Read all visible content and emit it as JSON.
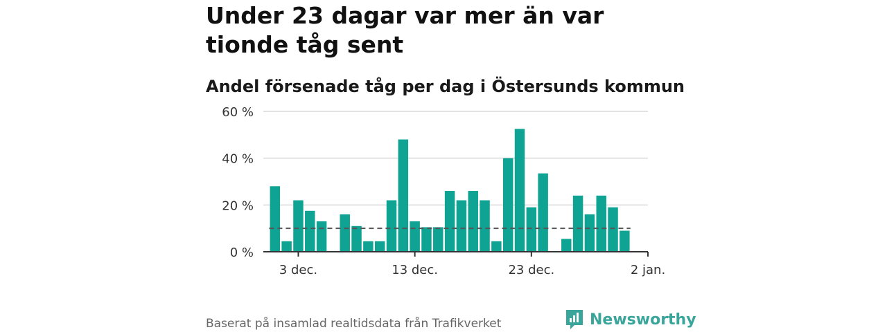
{
  "header": {
    "title": "Under 23 dagar var mer än var tionde tåg sent",
    "subtitle": "Andel försenade tåg per dag i Östersunds kommun"
  },
  "footer": {
    "source": "Baserat på insamlad realtidsdata från Trafikverket",
    "brand": "Newsworthy"
  },
  "colors": {
    "bar": "#0fa393",
    "threshold_line": "#555555",
    "grid": "#d9d9d9",
    "brand": "#3aa59a"
  },
  "chart_data": {
    "type": "bar",
    "title": "Andel försenade tåg per dag i Östersunds kommun",
    "ylabel": "",
    "xlabel": "",
    "ylim": [
      0,
      60
    ],
    "yticks": [
      0,
      20,
      40,
      60
    ],
    "ytick_labels": [
      "0 %",
      "20 %",
      "40 %",
      "60 %"
    ],
    "xtick_labels": [
      "3 dec.",
      "13 dec.",
      "23 dec.",
      "2 jan."
    ],
    "xtick_dates": [
      "2019-12-03",
      "2019-12-13",
      "2019-12-23",
      "2020-01-02"
    ],
    "x_range": [
      "2019-11-30",
      "2020-01-02"
    ],
    "threshold": 10,
    "dates": [
      "2019-12-01",
      "2019-12-02",
      "2019-12-03",
      "2019-12-04",
      "2019-12-05",
      "2019-12-06",
      "2019-12-07",
      "2019-12-08",
      "2019-12-09",
      "2019-12-10",
      "2019-12-11",
      "2019-12-12",
      "2019-12-13",
      "2019-12-14",
      "2019-12-15",
      "2019-12-16",
      "2019-12-17",
      "2019-12-18",
      "2019-12-19",
      "2019-12-20",
      "2019-12-21",
      "2019-12-22",
      "2019-12-23",
      "2019-12-24",
      "2019-12-25",
      "2019-12-26",
      "2019-12-27",
      "2019-12-28",
      "2019-12-29",
      "2019-12-30",
      "2019-12-31"
    ],
    "values": [
      28,
      4.5,
      22,
      17.5,
      13,
      null,
      16,
      11,
      4.5,
      4.5,
      22,
      48,
      13,
      10.5,
      10.5,
      26,
      22,
      26,
      22,
      4.5,
      40,
      52.5,
      19,
      33.5,
      null,
      5.5,
      24,
      16,
      24,
      19,
      9
    ]
  }
}
